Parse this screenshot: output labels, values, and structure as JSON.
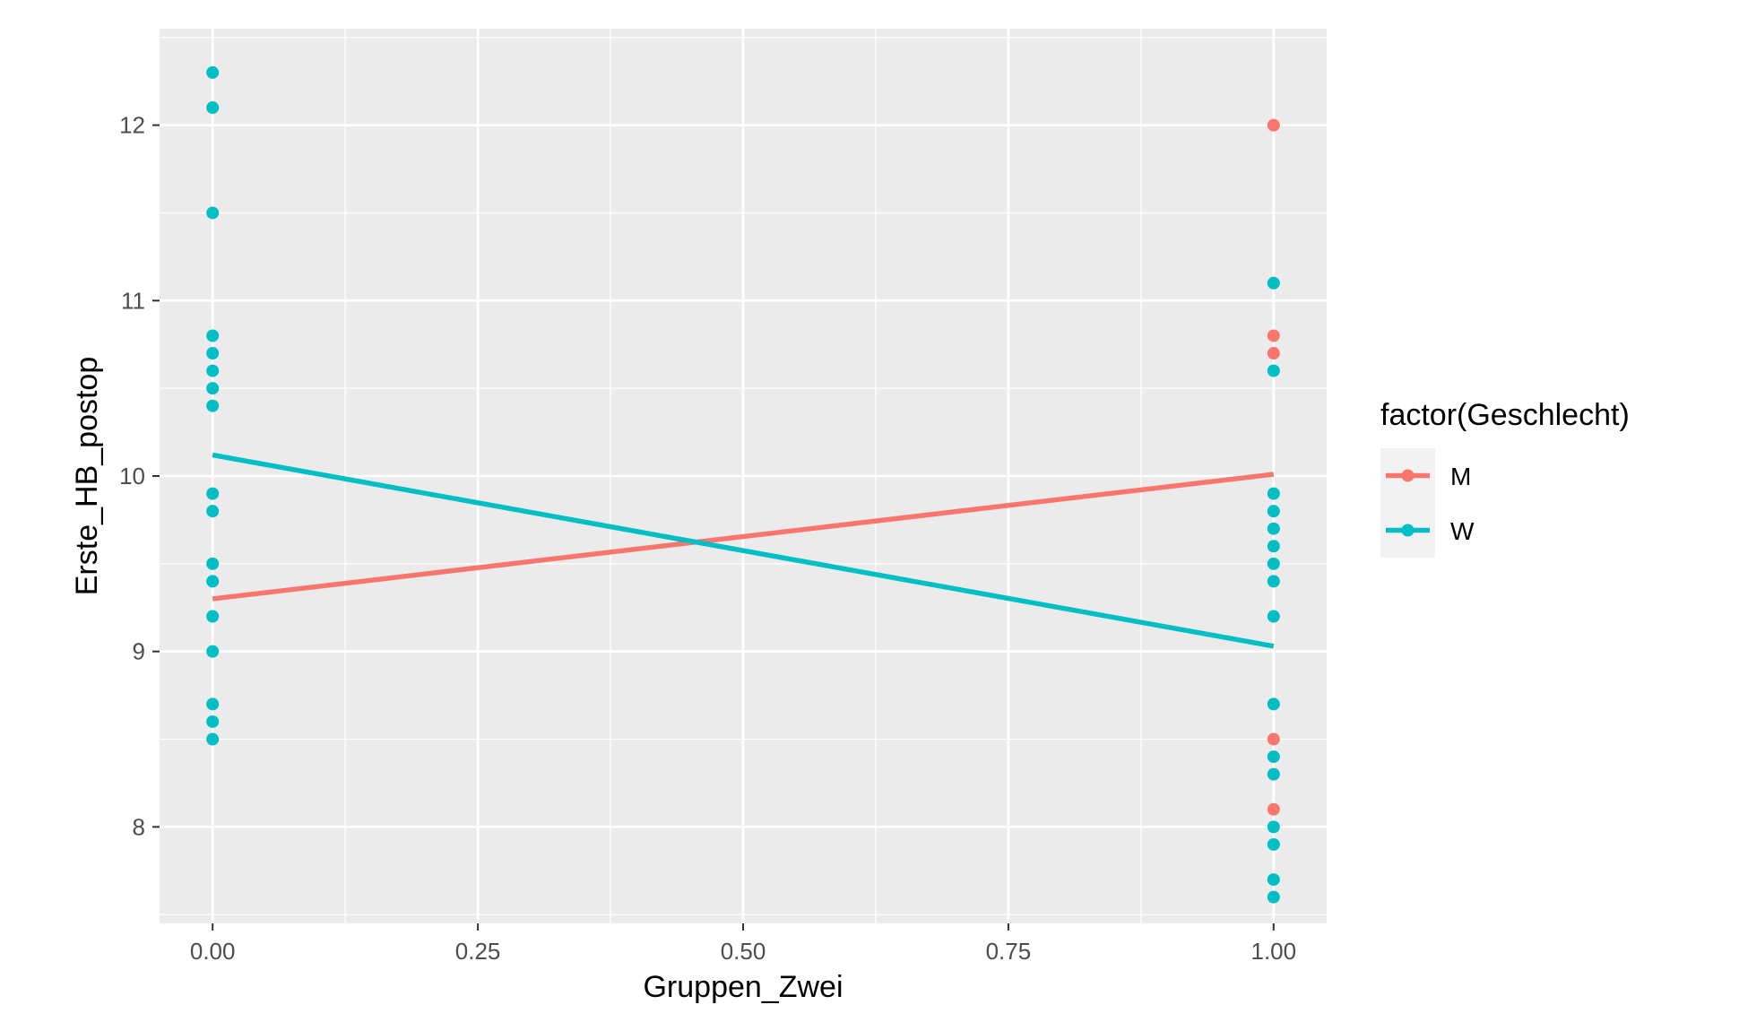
{
  "chart_data": {
    "type": "scatter",
    "xlabel": "Gruppen_Zwei",
    "ylabel": "Erste_HB_postop",
    "xlim": [
      -0.05,
      1.05
    ],
    "ylim": [
      7.45,
      12.55
    ],
    "x_ticks": [
      0,
      0.25,
      0.5,
      0.75,
      1
    ],
    "x_tick_labels": [
      "0.00",
      "0.25",
      "0.50",
      "0.75",
      "1.00"
    ],
    "y_ticks": [
      8,
      9,
      10,
      11,
      12
    ],
    "y_tick_labels": [
      "8",
      "9",
      "10",
      "11",
      "12"
    ],
    "grid": true,
    "legend": {
      "title": "factor(Geschlecht)",
      "placement": "right",
      "entries": [
        "M",
        "W"
      ]
    },
    "series": [
      {
        "name": "M",
        "color": "#F8766D",
        "points": [
          [
            1,
            12.0
          ],
          [
            1,
            10.8
          ],
          [
            1,
            10.7
          ],
          [
            1,
            8.5
          ],
          [
            1,
            8.1
          ]
        ],
        "fit_line": [
          [
            0,
            9.3
          ],
          [
            1,
            10.01
          ]
        ]
      },
      {
        "name": "W",
        "color": "#00BFC4",
        "points": [
          [
            0,
            12.3
          ],
          [
            0,
            12.1
          ],
          [
            0,
            11.5
          ],
          [
            0,
            10.8
          ],
          [
            0,
            10.7
          ],
          [
            0,
            10.6
          ],
          [
            0,
            10.5
          ],
          [
            0,
            10.4
          ],
          [
            0,
            9.9
          ],
          [
            0,
            9.8
          ],
          [
            0,
            9.5
          ],
          [
            0,
            9.4
          ],
          [
            0,
            9.2
          ],
          [
            0,
            9.0
          ],
          [
            0,
            8.7
          ],
          [
            0,
            8.6
          ],
          [
            0,
            8.5
          ],
          [
            1,
            11.1
          ],
          [
            1,
            10.6
          ],
          [
            1,
            9.9
          ],
          [
            1,
            9.8
          ],
          [
            1,
            9.7
          ],
          [
            1,
            9.6
          ],
          [
            1,
            9.5
          ],
          [
            1,
            9.4
          ],
          [
            1,
            9.2
          ],
          [
            1,
            8.7
          ],
          [
            1,
            8.4
          ],
          [
            1,
            8.3
          ],
          [
            1,
            8.0
          ],
          [
            1,
            7.9
          ],
          [
            1,
            7.7
          ],
          [
            1,
            7.6
          ]
        ],
        "fit_line": [
          [
            0,
            10.12
          ],
          [
            1,
            9.03
          ]
        ]
      }
    ]
  }
}
